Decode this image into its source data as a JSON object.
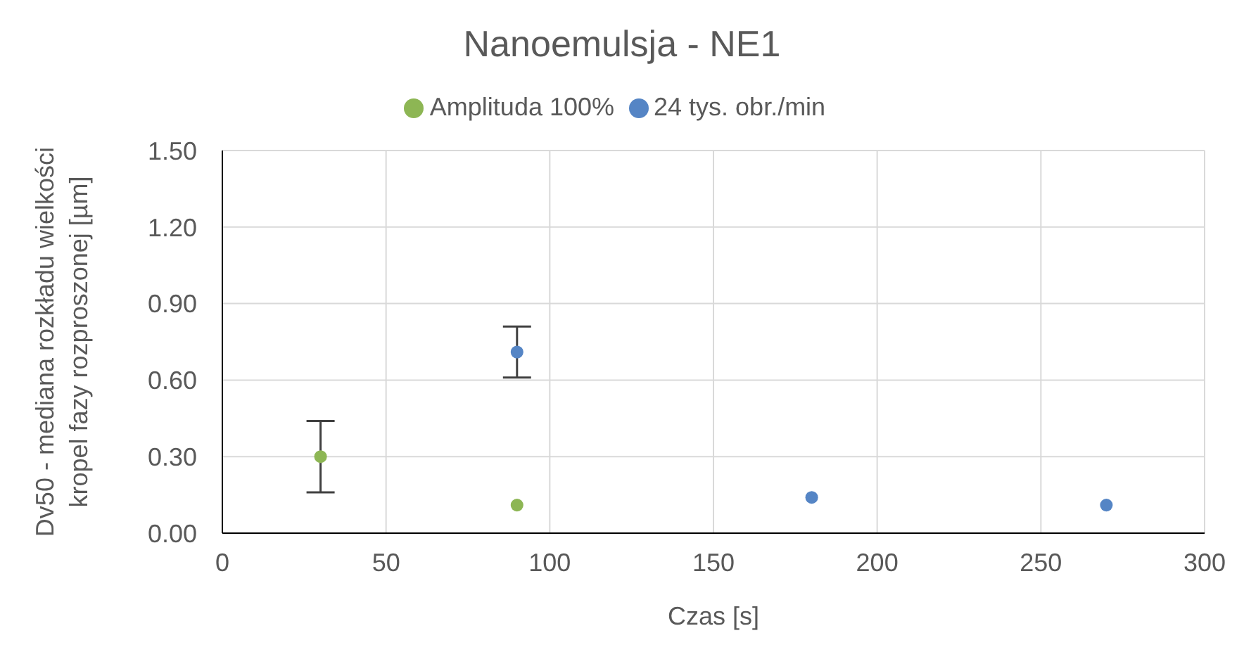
{
  "chart_data": {
    "type": "scatter",
    "title": "Nanoemulsja - NE1",
    "xlabel": "Czas [s]",
    "ylabel": "Dv50 - mediana rozkładu wielkości kropel fazy rozproszonej [µm]",
    "series": [
      {
        "name": "Amplituda 100%",
        "color": "#8db654",
        "x": [
          30,
          90
        ],
        "values": [
          0.3,
          0.11
        ],
        "errors": [
          0.14,
          null
        ]
      },
      {
        "name": "24 tys. obr./min",
        "color": "#5585c5",
        "x": [
          90,
          180,
          270
        ],
        "values": [
          0.71,
          0.14,
          0.11
        ],
        "errors": [
          0.1,
          null,
          null
        ]
      }
    ],
    "xlim": [
      0,
      300
    ],
    "xticks": [
      0,
      50,
      100,
      150,
      200,
      250,
      300
    ],
    "ylim": [
      0,
      1.5
    ],
    "yticks": [
      {
        "value": 0,
        "label": "0.00"
      },
      {
        "value": 0.3,
        "label": "0.30"
      },
      {
        "value": 0.6,
        "label": "0.60"
      },
      {
        "value": 0.9,
        "label": "0.90"
      },
      {
        "value": 1.2,
        "label": "1.20"
      },
      {
        "value": 1.5,
        "label": "1.50"
      }
    ],
    "grid": true,
    "legend": "top",
    "marker": "circle"
  }
}
